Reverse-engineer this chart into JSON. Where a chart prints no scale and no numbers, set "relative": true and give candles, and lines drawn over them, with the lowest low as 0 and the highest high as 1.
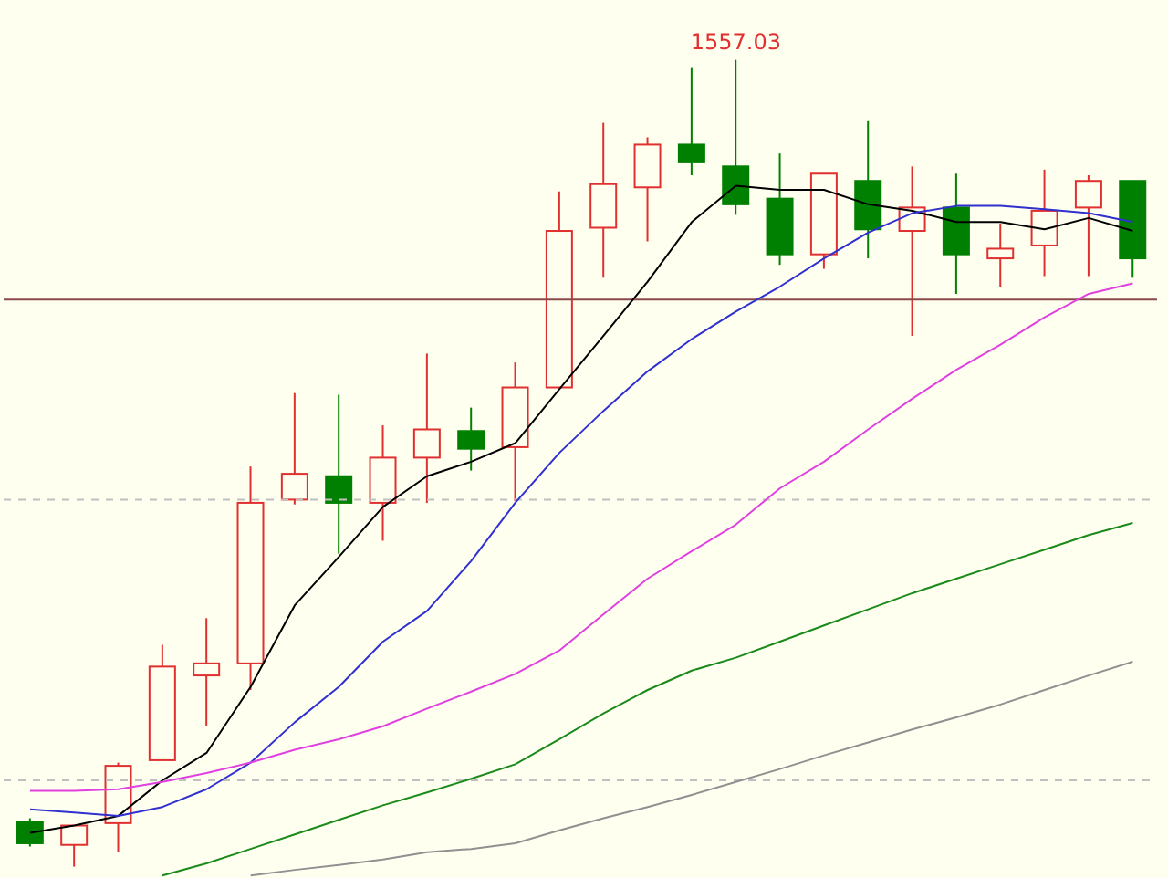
{
  "chart_data": {
    "type": "candlestick",
    "relative": true,
    "marker": "none",
    "line_style": "solid",
    "categories": [
      null,
      null,
      null,
      null,
      null,
      null,
      null,
      null,
      null,
      null,
      null,
      null,
      null,
      null,
      null,
      null,
      null,
      null,
      null,
      null,
      null,
      null,
      null,
      null,
      null,
      null
    ],
    "ohlc": [
      [
        0.056,
        0.06,
        0.025,
        0.029
      ],
      [
        0.027,
        0.051,
        0,
        0.051
      ],
      [
        0.054,
        0.129,
        0.018,
        0.125
      ],
      [
        0.132,
        0.275,
        0.132,
        0.248
      ],
      [
        0.237,
        0.308,
        0.174,
        0.252
      ],
      [
        0.252,
        0.496,
        0.219,
        0.451
      ],
      [
        0.455,
        0.587,
        0.449,
        0.487
      ],
      [
        0.484,
        0.585,
        0.388,
        0.451
      ],
      [
        0.451,
        0.547,
        0.404,
        0.507
      ],
      [
        0.507,
        0.636,
        0.451,
        0.542
      ],
      [
        0.54,
        0.569,
        0.491,
        0.518
      ],
      [
        0.52,
        0.625,
        0.453,
        0.594
      ],
      [
        0.594,
        0.837,
        0.594,
        0.788
      ],
      [
        0.792,
        0.922,
        0.73,
        0.846
      ],
      [
        0.842,
        0.904,
        0.775,
        0.895
      ],
      [
        0.895,
        0.991,
        0.857,
        0.873
      ],
      [
        0.868,
        1,
        0.808,
        0.821
      ],
      [
        0.828,
        0.884,
        0.746,
        0.759
      ],
      [
        0.759,
        0.859,
        0.741,
        0.859
      ],
      [
        0.85,
        0.924,
        0.754,
        0.79
      ],
      [
        0.788,
        0.868,
        0.658,
        0.817
      ],
      [
        0.817,
        0.859,
        0.71,
        0.759
      ],
      [
        0.754,
        0.797,
        0.719,
        0.766
      ],
      [
        0.77,
        0.864,
        0.732,
        0.813
      ],
      [
        0.817,
        0.857,
        0.732,
        0.85
      ],
      [
        0.85,
        0.85,
        0.73,
        0.754
      ]
    ],
    "colors": [
      "#008000",
      "#e03030",
      "#e03030",
      "#e03030",
      "#e03030",
      "#e03030",
      "#e03030",
      "#008000",
      "#e03030",
      "#e03030",
      "#008000",
      "#e03030",
      "#e03030",
      "#e03030",
      "#e03030",
      "#008000",
      "#008000",
      "#008000",
      "#e03030",
      "#008000",
      "#e03030",
      "#008000",
      "#e03030",
      "#e03030",
      "#e03030",
      "#008000"
    ],
    "series": [
      {
        "type": "line",
        "color": "#000000",
        "values": [
          0.042,
          0.051,
          0.063,
          0.107,
          0.141,
          0.223,
          0.324,
          0.384,
          0.446,
          0.484,
          0.502,
          0.525,
          0.592,
          0.658,
          0.725,
          0.799,
          0.844,
          0.839,
          0.839,
          0.821,
          0.813,
          0.799,
          0.799,
          0.79,
          0.804,
          0.788
        ]
      },
      {
        "type": "line",
        "color": "#3030d0",
        "values": [
          0.071,
          0.067,
          0.063,
          0.074,
          0.096,
          0.129,
          0.179,
          0.223,
          0.279,
          0.317,
          0.379,
          0.451,
          0.513,
          0.565,
          0.614,
          0.654,
          0.688,
          0.719,
          0.754,
          0.786,
          0.81,
          0.819,
          0.819,
          0.815,
          0.81,
          0.799
        ]
      },
      {
        "type": "line",
        "color": "#e040e0",
        "values": [
          0.094,
          0.094,
          0.096,
          0.105,
          0.116,
          0.129,
          0.145,
          0.158,
          0.174,
          0.196,
          0.217,
          0.239,
          0.268,
          0.313,
          0.357,
          0.391,
          0.424,
          0.469,
          0.502,
          0.542,
          0.58,
          0.616,
          0.647,
          0.681,
          0.71,
          0.723
        ]
      },
      {
        "type": "line",
        "color": "#1a8a1a",
        "values": [
          null,
          null,
          null,
          -0.011,
          0.004,
          0.022,
          0.04,
          0.058,
          0.076,
          0.092,
          0.109,
          0.127,
          0.158,
          0.19,
          0.219,
          0.243,
          0.259,
          0.279,
          0.299,
          0.319,
          0.339,
          0.357,
          0.375,
          0.393,
          0.411,
          0.426
        ]
      },
      {
        "type": "line",
        "color": "#909090",
        "values": [
          null,
          null,
          null,
          null,
          null,
          -0.011,
          -0.004,
          0.002,
          0.009,
          0.018,
          0.022,
          0.029,
          0.045,
          0.06,
          0.074,
          0.089,
          0.105,
          0.121,
          0.138,
          0.154,
          0.17,
          0.185,
          0.201,
          0.219,
          0.237,
          0.254
        ]
      }
    ],
    "ref_lines": [
      {
        "axis": "y",
        "value": 0.703,
        "color": "#8b4a4a",
        "line_style": "solid"
      },
      {
        "axis": "y",
        "value": 0.455,
        "color": "#c0c0c0",
        "line_style": "dashed"
      },
      {
        "axis": "y",
        "value": 0.107,
        "color": "#c0c0c0",
        "line_style": "dashed"
      }
    ],
    "annotations": [
      {
        "text": "1557.03",
        "y": 1
      }
    ]
  }
}
